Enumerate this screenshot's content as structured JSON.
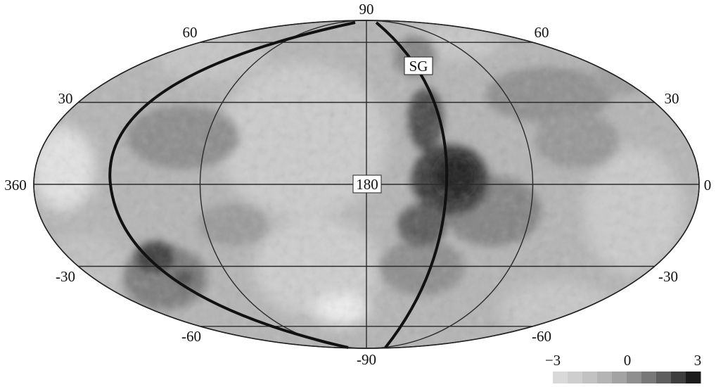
{
  "map": {
    "projection": "aitoff-hammer",
    "grid_lines": {
      "latitudes": [
        -60,
        -30,
        0,
        30,
        60
      ],
      "longitudes": [
        360,
        270,
        180,
        90,
        0
      ]
    },
    "latitude_labels": {
      "top": "90",
      "bottom": "-90",
      "upper_left": "60",
      "upper_right": "60",
      "mid_left": "30",
      "mid_right": "30",
      "lower_left": "-30",
      "lower_right": "-30",
      "bottom_left": "-60",
      "bottom_right": "-60"
    },
    "longitude_labels": {
      "left": "360",
      "center": "180",
      "right": "0"
    },
    "marker": {
      "label": "SG"
    }
  },
  "colorbar": {
    "min_label": "−3",
    "mid_label": "0",
    "max_label": "3",
    "min": -3,
    "max": 3,
    "shades": [
      "#d9d9d9",
      "#cecece",
      "#c2c2c2",
      "#b4b4b4",
      "#a3a3a3",
      "#8f8f8f",
      "#787878",
      "#5e5e5e",
      "#3e3e3e",
      "#1c1c1c"
    ]
  },
  "colors": {
    "background": "#ffffff",
    "sky_base": "#b4b4b4",
    "grid": "#2a2a2a"
  }
}
